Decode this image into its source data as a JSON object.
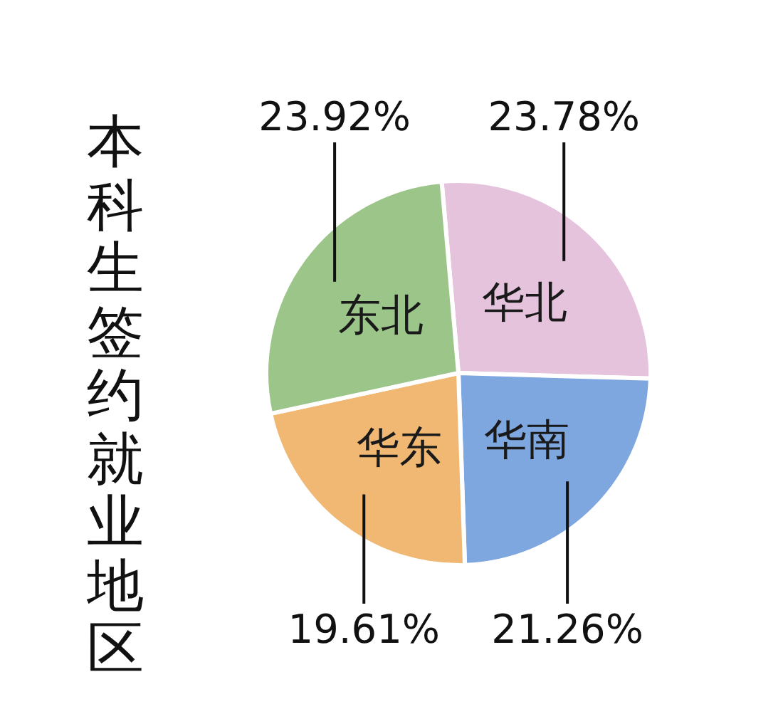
{
  "chart_data": {
    "type": "pie",
    "title": "本科生签约就业地区",
    "categories": [
      "华北",
      "华南",
      "华东",
      "东北"
    ],
    "values": [
      23.78,
      21.26,
      19.61,
      23.92
    ],
    "value_labels": [
      "23.78%",
      "21.26%",
      "19.61%",
      "23.92%"
    ],
    "colors": [
      "#e6c3dd",
      "#7ea6df",
      "#f1b873",
      "#9cc58a"
    ]
  }
}
